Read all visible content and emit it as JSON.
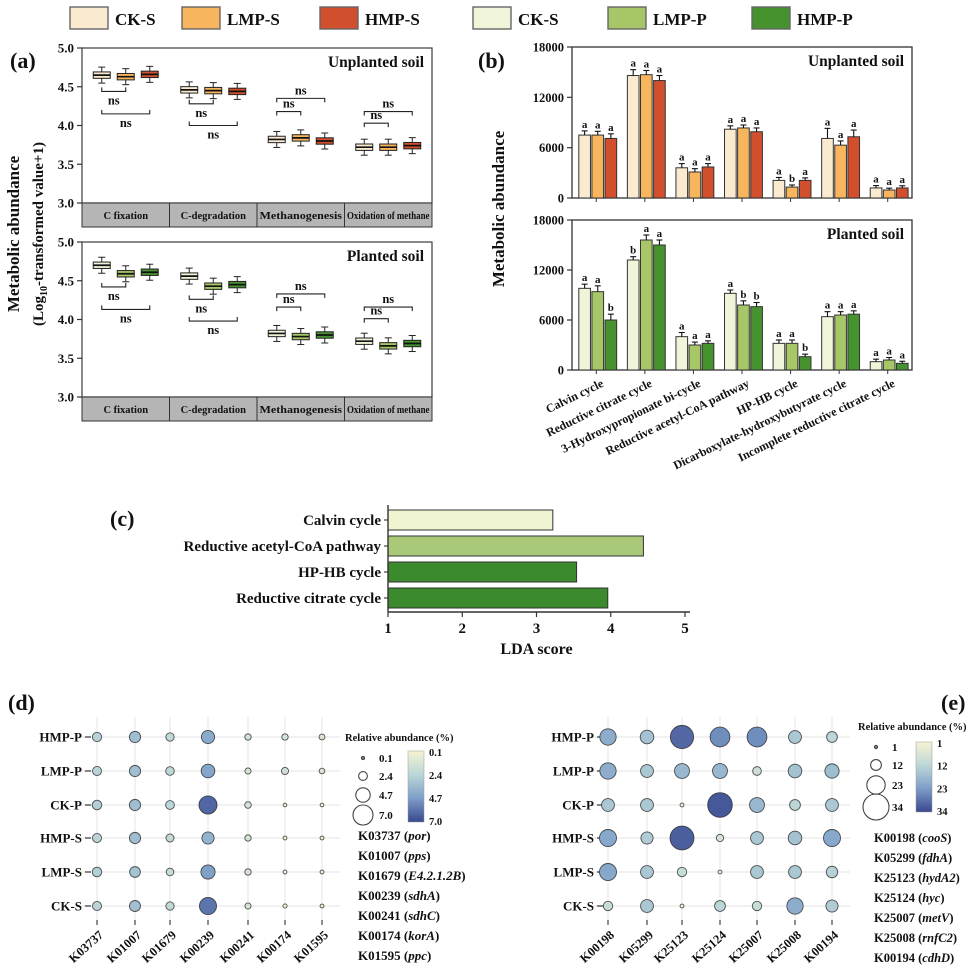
{
  "legend_top": {
    "items": [
      {
        "label": "CK-S",
        "color": "#f9ead0"
      },
      {
        "label": "LMP-S",
        "color": "#f7b55e"
      },
      {
        "label": "HMP-S",
        "color": "#d14f2c"
      },
      {
        "label": "CK-S",
        "color": "#f0f4d8"
      },
      {
        "label": "LMP-P",
        "color": "#a7c667"
      },
      {
        "label": "HMP-P",
        "color": "#45922f"
      }
    ]
  },
  "panels": {
    "a": {
      "tag": "(a)",
      "ylabel_line1": "Metabolic abundance",
      "ylabel2_pre": "(Log",
      "ylabel2_sub": "10",
      "ylabel2_post": "-transformed value+1)"
    },
    "b": {
      "tag": "(b)",
      "ylabel": "Metabolic abundance"
    },
    "c": {
      "tag": "(c)"
    },
    "d": {
      "tag": "(d)"
    },
    "e": {
      "tag": "(e)"
    }
  },
  "chart_data": [
    {
      "id": "a1",
      "type": "box",
      "title": "Unplanted soil",
      "ylim": [
        3.0,
        5.0
      ],
      "yticks": [
        5.0,
        4.5,
        4.0,
        3.5,
        3.0
      ],
      "categories": [
        "C fixation",
        "C-degradation",
        "Methanogenesis",
        "Oxidation of methane"
      ],
      "series": [
        {
          "name": "CK-S",
          "color": "#f9ead0",
          "medians": [
            4.65,
            4.46,
            3.82,
            3.72
          ]
        },
        {
          "name": "LMP-S",
          "color": "#f7b55e",
          "medians": [
            4.63,
            4.45,
            3.84,
            3.72
          ]
        },
        {
          "name": "HMP-S",
          "color": "#d14f2c",
          "medians": [
            4.66,
            4.44,
            3.8,
            3.74
          ]
        }
      ],
      "annotations": [
        {
          "cat": 0,
          "from": 0,
          "to": 1,
          "y": 4.44,
          "label": "ns",
          "placement": "below"
        },
        {
          "cat": 0,
          "from": 0,
          "to": 2,
          "y": 4.15,
          "label": "ns",
          "placement": "below"
        },
        {
          "cat": 1,
          "from": 0,
          "to": 1,
          "y": 4.28,
          "label": "ns",
          "placement": "below"
        },
        {
          "cat": 1,
          "from": 0,
          "to": 2,
          "y": 4.0,
          "label": "ns",
          "placement": "below"
        },
        {
          "cat": 2,
          "from": 0,
          "to": 2,
          "y": 4.35,
          "label": "ns",
          "placement": "above"
        },
        {
          "cat": 2,
          "from": 0,
          "to": 1,
          "y": 4.18,
          "label": "ns",
          "placement": "above"
        },
        {
          "cat": 3,
          "from": 0,
          "to": 2,
          "y": 4.18,
          "label": "ns",
          "placement": "above"
        },
        {
          "cat": 3,
          "from": 0,
          "to": 1,
          "y": 4.03,
          "label": "ns",
          "placement": "above"
        }
      ]
    },
    {
      "id": "a2",
      "type": "box",
      "title": "Planted soil",
      "ylim": [
        3.0,
        5.0
      ],
      "yticks": [
        5.0,
        4.5,
        4.0,
        3.5,
        3.0
      ],
      "categories": [
        "C fixation",
        "C-degradation",
        "Methanogenesis",
        "Oxidation of methane"
      ],
      "series": [
        {
          "name": "CK-S",
          "color": "#f0f4d8",
          "medians": [
            4.7,
            4.56,
            3.82,
            3.72
          ]
        },
        {
          "name": "LMP-P",
          "color": "#a7c667",
          "medians": [
            4.59,
            4.43,
            3.78,
            3.66
          ]
        },
        {
          "name": "HMP-P",
          "color": "#45922f",
          "medians": [
            4.61,
            4.45,
            3.8,
            3.69
          ]
        }
      ],
      "annotations": [
        {
          "cat": 0,
          "from": 0,
          "to": 1,
          "y": 4.42,
          "label": "ns",
          "placement": "below"
        },
        {
          "cat": 0,
          "from": 0,
          "to": 2,
          "y": 4.13,
          "label": "ns",
          "placement": "below"
        },
        {
          "cat": 1,
          "from": 0,
          "to": 1,
          "y": 4.26,
          "label": "ns",
          "placement": "below"
        },
        {
          "cat": 1,
          "from": 0,
          "to": 2,
          "y": 3.98,
          "label": "ns",
          "placement": "below"
        },
        {
          "cat": 2,
          "from": 0,
          "to": 2,
          "y": 4.33,
          "label": "ns",
          "placement": "above"
        },
        {
          "cat": 2,
          "from": 0,
          "to": 1,
          "y": 4.16,
          "label": "ns",
          "placement": "above"
        },
        {
          "cat": 3,
          "from": 0,
          "to": 2,
          "y": 4.16,
          "label": "ns",
          "placement": "above"
        },
        {
          "cat": 3,
          "from": 0,
          "to": 1,
          "y": 4.01,
          "label": "ns",
          "placement": "above"
        }
      ]
    },
    {
      "id": "b1",
      "type": "bar",
      "title": "Unplanted soil",
      "ylim": [
        0,
        18000
      ],
      "yticks": [
        18000,
        12000,
        6000,
        0
      ],
      "show_xlabels": false,
      "categories": [
        "Calvin cycle",
        "Reductive citrate cycle",
        "3-Hydroxypropionate bi-cycle",
        "Reductive acetyl-CoA pathway",
        "HP-HB cycle",
        "Dicarboxylate-hydroxybutyrate cycle",
        "Incomplete reductive citrate cycle"
      ],
      "series": [
        {
          "name": "CK-S",
          "color": "#f9ead0",
          "values": [
            7500,
            14600,
            3600,
            8200,
            2100,
            7100,
            1200
          ],
          "errors": [
            500,
            700,
            500,
            400,
            350,
            1200,
            280
          ],
          "letters": [
            "a",
            "a",
            "a",
            "a",
            "a",
            "a",
            "a"
          ]
        },
        {
          "name": "LMP-S",
          "color": "#f7b55e",
          "values": [
            7500,
            14700,
            3100,
            8350,
            1300,
            6300,
            950
          ],
          "errors": [
            450,
            500,
            400,
            350,
            250,
            500,
            220
          ],
          "letters": [
            "a",
            "a",
            "a",
            "a",
            "b",
            "a",
            "a"
          ]
        },
        {
          "name": "HMP-S",
          "color": "#d14f2c",
          "values": [
            7100,
            14000,
            3700,
            7900,
            2100,
            7300,
            1200
          ],
          "errors": [
            550,
            600,
            400,
            450,
            300,
            800,
            260
          ],
          "letters": [
            "a",
            "a",
            "a",
            "a",
            "a",
            "a",
            "a"
          ]
        }
      ]
    },
    {
      "id": "b2",
      "type": "bar",
      "title": "Planted soil",
      "ylim": [
        0,
        18000
      ],
      "yticks": [
        18000,
        12000,
        6000,
        0
      ],
      "show_xlabels": true,
      "categories": [
        "Calvin cycle",
        "Reductive citrate cycle",
        "3-Hydroxypropionate bi-cycle",
        "Reductive acetyl-CoA pathway",
        "HP-HB cycle",
        "Dicarboxylate-hydroxybutyrate cycle",
        "Incomplete reductive citrate cycle"
      ],
      "series": [
        {
          "name": "CK-S",
          "color": "#f0f4d8",
          "values": [
            9800,
            13200,
            4000,
            9200,
            3200,
            6400,
            1000
          ],
          "errors": [
            500,
            400,
            500,
            400,
            400,
            600,
            300
          ],
          "letters": [
            "a",
            "b",
            "a",
            "a",
            "a",
            "a",
            "a"
          ]
        },
        {
          "name": "LMP-P",
          "color": "#a7c667",
          "values": [
            9400,
            15600,
            3000,
            7800,
            3200,
            6600,
            1200
          ],
          "errors": [
            700,
            600,
            350,
            500,
            400,
            400,
            300
          ],
          "letters": [
            "a",
            "a",
            "a",
            "b",
            "a",
            "a",
            "a"
          ]
        },
        {
          "name": "HMP-P",
          "color": "#45922f",
          "values": [
            6000,
            15000,
            3200,
            7600,
            1600,
            6700,
            800
          ],
          "errors": [
            700,
            600,
            300,
            500,
            300,
            400,
            250
          ],
          "letters": [
            "b",
            "a",
            "a",
            "b",
            "b",
            "a",
            "a"
          ]
        }
      ]
    },
    {
      "id": "c",
      "type": "bar-h",
      "xlabel": "LDA score",
      "xlim": [
        1,
        5
      ],
      "xticks": [
        1,
        2,
        3,
        4,
        5
      ],
      "categories": [
        "Calvin cycle",
        "Reductive acetyl-CoA pathway",
        "HP-HB cycle",
        "Reductive citrate cycle"
      ],
      "values": [
        3.22,
        4.44,
        3.54,
        3.96
      ],
      "colors": [
        "#f0f4d0",
        "#a9c878",
        "#3c8a2e",
        "#3c8a2e"
      ]
    },
    {
      "id": "d",
      "type": "bubble",
      "rows": [
        "HMP-P",
        "LMP-P",
        "CK-P",
        "HMP-S",
        "LMP-S",
        "CK-S"
      ],
      "cols": [
        "K03737",
        "K01007",
        "K01679",
        "K00239",
        "K00241",
        "K00174",
        "K01595"
      ],
      "values": [
        [
          2.6,
          3.4,
          2.2,
          4.2,
          1.4,
          1.4,
          1.2
        ],
        [
          2.5,
          3.4,
          2.3,
          4.4,
          1.3,
          1.7,
          1.1
        ],
        [
          2.7,
          3.4,
          2.4,
          6.2,
          1.5,
          0.3,
          0.3
        ],
        [
          2.5,
          3.4,
          2.1,
          3.8,
          1.4,
          0.4,
          0.4
        ],
        [
          2.7,
          3.2,
          1.9,
          4.6,
          1.4,
          0.4,
          0.4
        ],
        [
          2.5,
          3.3,
          2.2,
          5.8,
          1.3,
          0.5,
          0.4
        ]
      ],
      "value_domain": [
        0.1,
        7.0
      ],
      "legend": {
        "title": "Relative abundance (%)",
        "sizes": [
          "0.1",
          "2.4",
          "4.7",
          "7.0"
        ],
        "colorbar_labels": [
          "0.1",
          "2.4",
          "4.7",
          "7.0"
        ]
      },
      "genes": [
        {
          "id": "K03737",
          "name": "por"
        },
        {
          "id": "K01007",
          "name": "pps"
        },
        {
          "id": "K01679",
          "name": "E4.2.1.2B"
        },
        {
          "id": "K00239",
          "name": "sdhA"
        },
        {
          "id": "K00241",
          "name": "sdhC"
        },
        {
          "id": "K00174",
          "name": "korA"
        },
        {
          "id": "K01595",
          "name": "ppc"
        }
      ]
    },
    {
      "id": "e",
      "type": "bubble",
      "rows": [
        "HMP-P",
        "LMP-P",
        "CK-P",
        "HMP-S",
        "LMP-S",
        "CK-S"
      ],
      "cols": [
        "K00198",
        "K05299",
        "K25123",
        "K25124",
        "K25007",
        "K25008",
        "K00194"
      ],
      "values": [
        [
          20,
          16,
          30,
          25,
          25,
          15,
          12
        ],
        [
          20,
          15,
          18,
          18,
          9,
          16,
          17
        ],
        [
          15,
          15,
          2,
          32,
          18,
          12,
          15
        ],
        [
          21,
          14,
          31,
          7,
          15,
          16,
          21
        ],
        [
          21,
          15,
          10,
          2,
          15,
          15,
          13
        ],
        [
          10,
          15,
          2,
          12,
          10,
          20,
          14
        ]
      ],
      "value_domain": [
        1,
        34
      ],
      "legend": {
        "title": "Relative abundance (%)",
        "sizes": [
          "1",
          "12",
          "23",
          "34"
        ],
        "colorbar_labels": [
          "1",
          "12",
          "23",
          "34"
        ]
      },
      "genes": [
        {
          "id": "K00198",
          "name": "cooS"
        },
        {
          "id": "K05299",
          "name": "fdhA"
        },
        {
          "id": "K25123",
          "name": "hydA2"
        },
        {
          "id": "K25124",
          "name": "hyc"
        },
        {
          "id": "K25007",
          "name": "metV"
        },
        {
          "id": "K25008",
          "name": "rnfC2"
        },
        {
          "id": "K00194",
          "name": "cdhD"
        }
      ]
    }
  ]
}
